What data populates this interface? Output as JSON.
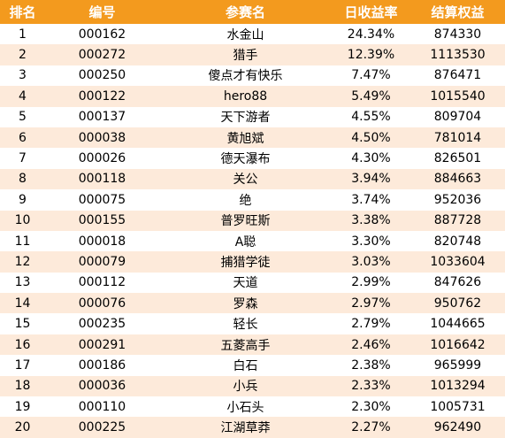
{
  "colors": {
    "header_bg": "#f39a1e",
    "header_text": "#ffffff",
    "row_alt_bg": "#fdeada",
    "row_bg": "#ffffff"
  },
  "table": {
    "headers": [
      "排名",
      "编号",
      "参赛名",
      "日收益率",
      "结算权益"
    ],
    "rows": [
      [
        "1",
        "000162",
        "水金山",
        "24.34%",
        "874330"
      ],
      [
        "2",
        "000272",
        "猎手",
        "12.39%",
        "1113530"
      ],
      [
        "3",
        "000250",
        "傻点才有快乐",
        "7.47%",
        "876471"
      ],
      [
        "4",
        "000122",
        "hero88",
        "5.49%",
        "1015540"
      ],
      [
        "5",
        "000137",
        "天下游者",
        "4.55%",
        "809704"
      ],
      [
        "6",
        "000038",
        "黄旭斌",
        "4.50%",
        "781014"
      ],
      [
        "7",
        "000026",
        "德天瀑布",
        "4.30%",
        "826501"
      ],
      [
        "8",
        "000118",
        "关公",
        "3.94%",
        "884663"
      ],
      [
        "9",
        "000075",
        "绝",
        "3.74%",
        "952036"
      ],
      [
        "10",
        "000155",
        "普罗旺斯",
        "3.38%",
        "887728"
      ],
      [
        "11",
        "000018",
        "A聪",
        "3.30%",
        "820748"
      ],
      [
        "12",
        "000079",
        "捕猎学徒",
        "3.03%",
        "1033604"
      ],
      [
        "13",
        "000112",
        "天道",
        "2.99%",
        "847626"
      ],
      [
        "14",
        "000076",
        "罗森",
        "2.97%",
        "950762"
      ],
      [
        "15",
        "000235",
        "轻长",
        "2.79%",
        "1044665"
      ],
      [
        "16",
        "000291",
        "五菱高手",
        "2.46%",
        "1016642"
      ],
      [
        "17",
        "000186",
        "白石",
        "2.38%",
        "965999"
      ],
      [
        "18",
        "000036",
        "小兵",
        "2.33%",
        "1013294"
      ],
      [
        "19",
        "000110",
        "小石头",
        "2.30%",
        "1005731"
      ],
      [
        "20",
        "000225",
        "江湖草莽",
        "2.27%",
        "962490"
      ]
    ]
  }
}
